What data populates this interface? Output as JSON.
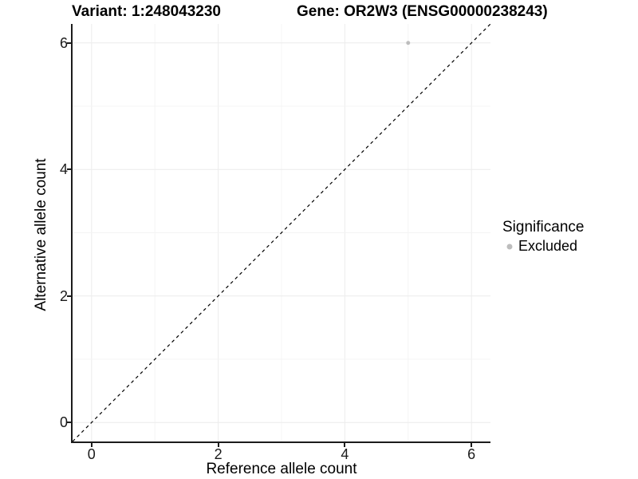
{
  "titles": {
    "variant": "Variant: 1:248043230",
    "gene": "Gene: OR2W3 (ENSG00000238243)"
  },
  "axes": {
    "x": {
      "label": "Reference allele count",
      "tick_values": [
        0,
        2,
        4,
        6
      ]
    },
    "y": {
      "label": "Alternative allele count",
      "tick_values": [
        0,
        2,
        4,
        6
      ]
    }
  },
  "legend": {
    "title": "Significance",
    "items": [
      {
        "label": "Excluded",
        "color": "#bdbdbd"
      }
    ]
  },
  "colors": {
    "axis_line": "#1c1c1c",
    "tick_text": "#1a1a1a",
    "grid_major": "#ececec",
    "grid_minor": "#f4f4f4",
    "reference_line": "#000000",
    "point": "#bdbdbd",
    "background": "#ffffff"
  },
  "chart_data": {
    "type": "scatter",
    "title": "Variant: 1:248043230 | Gene: OR2W3 (ENSG00000238243)",
    "xlabel": "Reference allele count",
    "ylabel": "Alternative allele count",
    "xlim": [
      -0.3,
      6.3
    ],
    "ylim": [
      -0.3,
      6.3
    ],
    "x_ticks": [
      0,
      2,
      4,
      6
    ],
    "y_ticks": [
      0,
      2,
      4,
      6
    ],
    "grid_lines_x": [
      0,
      1,
      2,
      3,
      4,
      5,
      6
    ],
    "grid_lines_y": [
      0,
      1,
      2,
      3,
      4,
      5,
      6
    ],
    "grid": "on",
    "legend_position": "right",
    "series": [
      {
        "name": "Excluded",
        "color": "#bdbdbd",
        "point_radius": 2.5,
        "points": [
          {
            "x": 5,
            "y": 6
          }
        ]
      }
    ],
    "reference_line": {
      "type": "identity y=x",
      "style": "dashed",
      "from": [
        -0.3,
        -0.3
      ],
      "to": [
        6.3,
        6.3
      ]
    }
  }
}
